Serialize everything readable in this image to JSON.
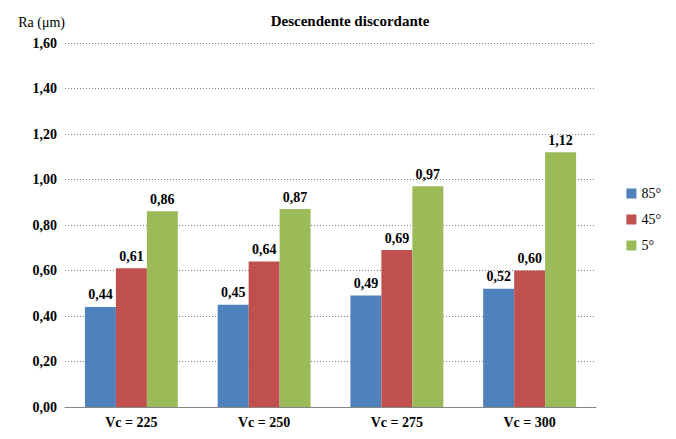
{
  "chart_data": {
    "type": "bar",
    "title": "Descendente discordante",
    "y_label": "Ra (μm)",
    "categories": [
      "Vc = 225",
      "Vc = 250",
      "Vc = 275",
      "Vc = 300"
    ],
    "series": [
      {
        "name": "85°",
        "color": "#4f81bd",
        "values": [
          0.44,
          0.45,
          0.49,
          0.52
        ],
        "value_labels": [
          "0,44",
          "0,45",
          "0,49",
          "0,52"
        ]
      },
      {
        "name": "45°",
        "color": "#c0504d",
        "values": [
          0.61,
          0.64,
          0.69,
          0.6
        ],
        "value_labels": [
          "0,61",
          "0,64",
          "0,69",
          "0,60"
        ]
      },
      {
        "name": "5°",
        "color": "#9bbb59",
        "values": [
          0.86,
          0.87,
          0.97,
          1.12
        ],
        "value_labels": [
          "0,86",
          "0,87",
          "0,97",
          "1,12"
        ]
      }
    ],
    "ylim": [
      0,
      1.6
    ],
    "yticks": [
      {
        "value": 0,
        "label": "0,00"
      },
      {
        "value": 0.2,
        "label": "0,20"
      },
      {
        "value": 0.4,
        "label": "0,40"
      },
      {
        "value": 0.6,
        "label": "0,60"
      },
      {
        "value": 0.8,
        "label": "0,80"
      },
      {
        "value": 1.0,
        "label": "1,00"
      },
      {
        "value": 1.2,
        "label": "1,20"
      },
      {
        "value": 1.4,
        "label": "1,40"
      },
      {
        "value": 1.6,
        "label": "1,60"
      }
    ],
    "grid": true,
    "legend": "right",
    "data_labels": true
  }
}
